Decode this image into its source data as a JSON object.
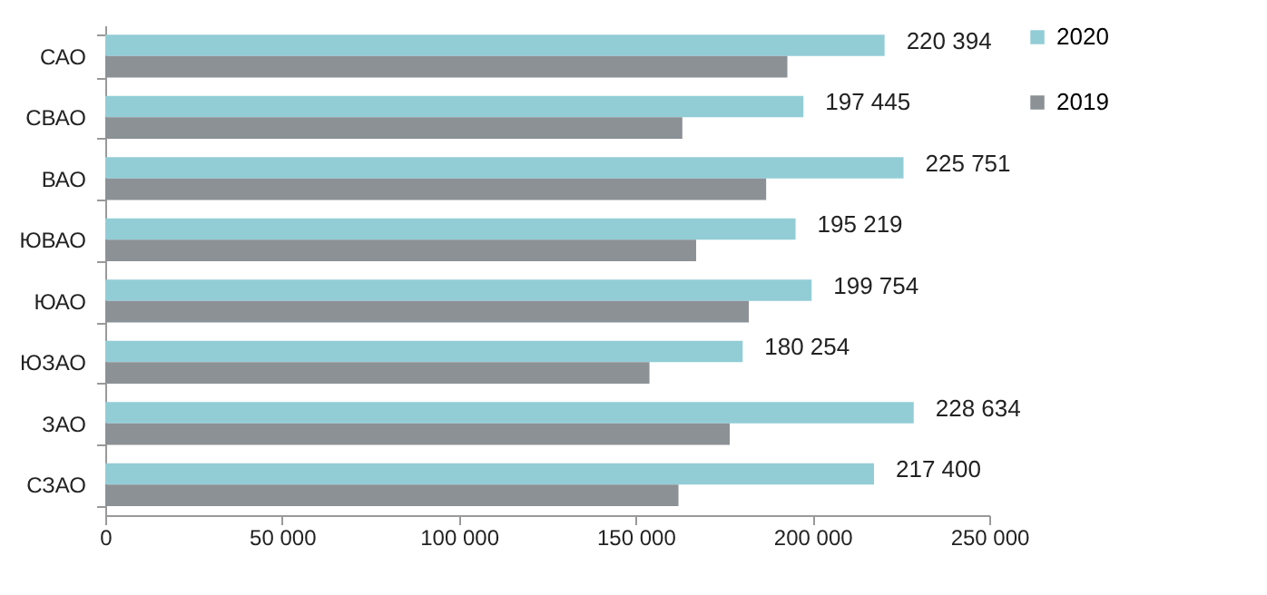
{
  "chart_data": {
    "type": "bar",
    "orientation": "horizontal",
    "categories": [
      "САО",
      "СВАО",
      "ВАО",
      "ЮВАО",
      "ЮАО",
      "ЮЗАО",
      "ЗАО",
      "СЗАО"
    ],
    "series": [
      {
        "name": "2020",
        "color": "#92cdd6",
        "values": [
          220394,
          197445,
          225751,
          195219,
          199754,
          180254,
          228634,
          217400
        ],
        "value_labels": [
          "220 394",
          "197 445",
          "225 751",
          "195 219",
          "199 754",
          "180 254",
          "228 634",
          "217 400"
        ]
      },
      {
        "name": "2019",
        "color": "#8c9196",
        "values": [
          192900,
          163200,
          186900,
          167100,
          182000,
          153900,
          176600,
          162100
        ]
      }
    ],
    "xlim": [
      0,
      250000
    ],
    "xticks": [
      0,
      {
        "value": 50000,
        "label": "50 000"
      },
      {
        "value": 100000,
        "label": "100 000"
      },
      {
        "value": 150000,
        "label": "150 000"
      },
      {
        "value": 200000,
        "label": "200 000"
      },
      {
        "value": 250000,
        "label": "250 000"
      }
    ],
    "grid": false,
    "legend": "right"
  }
}
